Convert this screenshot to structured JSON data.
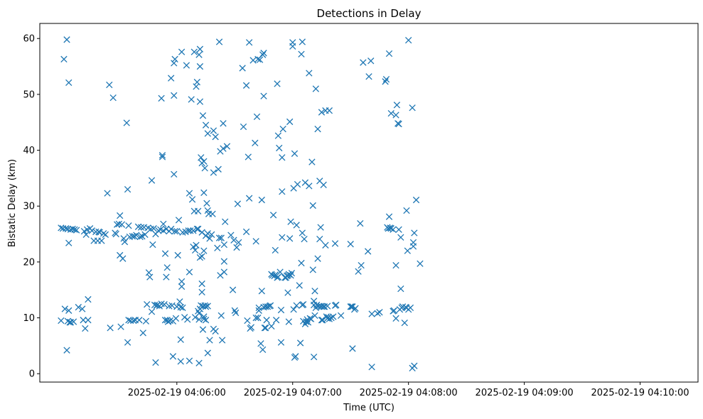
{
  "chart_data": {
    "type": "scatter",
    "title": "Detections in Delay",
    "xlabel": "Time (UTC)",
    "ylabel": "Bistatic Delay (km)",
    "marker": "x",
    "color": "#1f77b4",
    "x_start": "2025-02-19 04:05:00",
    "x_end": "2025-02-19 04:10:20",
    "xlim": [
      "2025-02-19 04:04:49",
      "2025-02-19 04:10:30"
    ],
    "ylim": [
      -1.5,
      62.7
    ],
    "xticks": [
      {
        "time": "2025-02-19 04:06:00",
        "label": "2025-02-19 04:06:00"
      },
      {
        "time": "2025-02-19 04:07:00",
        "label": "2025-02-19 04:07:00"
      },
      {
        "time": "2025-02-19 04:08:00",
        "label": "2025-02-19 04:08:00"
      },
      {
        "time": "2025-02-19 04:09:00",
        "label": "2025-02-19 04:09:00"
      },
      {
        "time": "2025-02-19 04:10:00",
        "label": "2025-02-19 04:10:00"
      }
    ],
    "yticks": [
      0,
      10,
      20,
      30,
      40,
      50,
      60
    ],
    "points": [
      [
        0.0,
        9.5
      ],
      [
        0.0,
        26.1
      ],
      [
        1.0,
        26.0
      ],
      [
        1.5,
        56.3
      ],
      [
        2.0,
        11.6
      ],
      [
        2.5,
        26.0
      ],
      [
        3.0,
        59.8
      ],
      [
        3.0,
        4.2
      ],
      [
        3.5,
        25.9
      ],
      [
        3.5,
        9.4
      ],
      [
        4.0,
        52.1
      ],
      [
        4.0,
        23.4
      ],
      [
        4.0,
        11.3
      ],
      [
        4.5,
        9.2
      ],
      [
        5.0,
        25.8
      ],
      [
        5.0,
        9.2
      ],
      [
        6.0,
        25.9
      ],
      [
        6.5,
        9.3
      ],
      [
        7.0,
        25.8
      ],
      [
        8.0,
        25.7
      ],
      [
        9.0,
        11.9
      ],
      [
        11.0,
        11.6
      ],
      [
        11.5,
        9.6
      ],
      [
        12.0,
        25.5
      ],
      [
        12.5,
        8.1
      ],
      [
        13.0,
        24.9
      ],
      [
        13.5,
        25.8
      ],
      [
        14.0,
        13.3
      ],
      [
        14.0,
        9.6
      ],
      [
        15.0,
        26.0
      ],
      [
        16.0,
        25.6
      ],
      [
        17.0,
        23.8
      ],
      [
        18.0,
        25.4
      ],
      [
        19.0,
        23.8
      ],
      [
        19.5,
        25.4
      ],
      [
        20.0,
        25.3
      ],
      [
        21.0,
        23.8
      ],
      [
        22.0,
        25.1
      ],
      [
        23.0,
        24.9
      ],
      [
        24.0,
        32.3
      ],
      [
        25.0,
        51.7
      ],
      [
        25.5,
        8.2
      ],
      [
        27.0,
        49.4
      ],
      [
        28.0,
        25.2
      ],
      [
        28.5,
        25.0
      ],
      [
        29.0,
        26.7
      ],
      [
        30.0,
        26.8
      ],
      [
        30.5,
        28.3
      ],
      [
        30.5,
        21.2
      ],
      [
        31.0,
        8.4
      ],
      [
        31.5,
        26.7
      ],
      [
        32.0,
        20.6
      ],
      [
        32.5,
        24.2
      ],
      [
        33.0,
        23.6
      ],
      [
        34.0,
        44.9
      ],
      [
        34.5,
        33.0
      ],
      [
        34.5,
        5.6
      ],
      [
        35.0,
        26.5
      ],
      [
        35.0,
        9.6
      ],
      [
        35.5,
        24.5
      ],
      [
        36.0,
        9.5
      ],
      [
        37.0,
        24.6
      ],
      [
        37.5,
        9.5
      ],
      [
        38.0,
        24.6
      ],
      [
        38.5,
        9.6
      ],
      [
        39.0,
        24.8
      ],
      [
        40.0,
        26.3
      ],
      [
        40.5,
        9.6
      ],
      [
        41.0,
        24.5
      ],
      [
        41.5,
        26.2
      ],
      [
        42.0,
        24.6
      ],
      [
        42.5,
        7.3
      ],
      [
        43.0,
        26.2
      ],
      [
        43.5,
        24.9
      ],
      [
        44.0,
        9.4
      ],
      [
        44.5,
        12.4
      ],
      [
        45.0,
        26.1
      ],
      [
        45.5,
        18.1
      ],
      [
        46.0,
        17.3
      ],
      [
        46.5,
        25.9
      ],
      [
        47.0,
        34.6
      ],
      [
        47.0,
        11.1
      ],
      [
        47.5,
        23.1
      ],
      [
        48.0,
        26.0
      ],
      [
        48.5,
        12.3
      ],
      [
        49.0,
        2.0
      ],
      [
        49.0,
        25.0
      ],
      [
        49.5,
        12.2
      ],
      [
        50.0,
        12.3
      ],
      [
        50.5,
        25.6
      ],
      [
        51.0,
        12.1
      ],
      [
        51.5,
        25.8
      ],
      [
        52.0,
        12.5
      ],
      [
        52.0,
        49.3
      ],
      [
        52.5,
        39.1
      ],
      [
        52.5,
        38.8
      ],
      [
        53.0,
        25.6
      ],
      [
        53.0,
        26.8
      ],
      [
        53.5,
        12.4
      ],
      [
        54.0,
        21.5
      ],
      [
        54.0,
        9.6
      ],
      [
        54.5,
        17.3
      ],
      [
        54.5,
        25.9
      ],
      [
        55.0,
        19.0
      ],
      [
        55.0,
        9.6
      ],
      [
        55.5,
        9.3
      ],
      [
        56.0,
        12.1
      ],
      [
        56.0,
        25.5
      ],
      [
        56.5,
        9.5
      ],
      [
        57.0,
        52.9
      ],
      [
        57.0,
        25.9
      ],
      [
        57.5,
        12.2
      ],
      [
        58.0,
        3.1
      ],
      [
        58.0,
        9.4
      ],
      [
        58.5,
        55.6
      ],
      [
        58.5,
        49.8
      ],
      [
        58.5,
        35.7
      ],
      [
        59.0,
        56.3
      ],
      [
        59.0,
        25.5
      ],
      [
        59.5,
        9.9
      ],
      [
        60.0,
        12.0
      ],
      [
        60.0,
        25.5
      ],
      [
        60.5,
        21.2
      ],
      [
        61.0,
        27.5
      ],
      [
        61.5,
        12.9
      ],
      [
        62.0,
        11.9
      ],
      [
        62.0,
        2.2
      ],
      [
        62.0,
        6.1
      ],
      [
        62.5,
        57.6
      ],
      [
        62.5,
        16.5
      ],
      [
        62.5,
        15.6
      ],
      [
        63.0,
        11.8
      ],
      [
        63.0,
        25.3
      ],
      [
        64.0,
        10.1
      ],
      [
        64.5,
        25.4
      ],
      [
        65.0,
        55.2
      ],
      [
        65.5,
        9.7
      ],
      [
        66.0,
        25.6
      ],
      [
        66.5,
        32.3
      ],
      [
        66.5,
        18.2
      ],
      [
        66.5,
        2.3
      ],
      [
        67.0,
        25.6
      ],
      [
        67.5,
        49.1
      ],
      [
        68.0,
        31.2
      ],
      [
        68.5,
        25.6
      ],
      [
        68.5,
        22.7
      ],
      [
        69.0,
        57.6
      ],
      [
        69.0,
        29.1
      ],
      [
        69.5,
        10.1
      ],
      [
        69.5,
        22.1
      ],
      [
        70.0,
        51.4
      ],
      [
        70.0,
        23.0
      ],
      [
        70.5,
        52.2
      ],
      [
        70.5,
        25.9
      ],
      [
        71.0,
        25.9
      ],
      [
        71.0,
        29.1
      ],
      [
        71.0,
        11.2
      ],
      [
        71.5,
        57.1
      ],
      [
        71.5,
        9.7
      ],
      [
        71.5,
        10.8
      ],
      [
        71.5,
        1.9
      ],
      [
        72.0,
        55.0
      ],
      [
        72.0,
        58.1
      ],
      [
        72.0,
        48.7
      ],
      [
        72.0,
        20.8
      ],
      [
        72.0,
        11.6
      ],
      [
        72.5,
        38.7
      ],
      [
        72.5,
        12.2
      ],
      [
        73.0,
        37.7
      ],
      [
        73.0,
        25.3
      ],
      [
        73.0,
        21.0
      ],
      [
        73.0,
        14.6
      ],
      [
        73.0,
        16.1
      ],
      [
        73.5,
        46.2
      ],
      [
        73.5,
        12.1
      ],
      [
        73.5,
        7.9
      ],
      [
        74.0,
        38.0
      ],
      [
        74.0,
        32.4
      ],
      [
        74.0,
        22.0
      ],
      [
        74.0,
        10.2
      ],
      [
        74.0,
        9.8
      ],
      [
        74.5,
        36.8
      ],
      [
        74.5,
        12.2
      ],
      [
        75.0,
        44.5
      ],
      [
        75.0,
        24.7
      ],
      [
        75.0,
        12.0
      ],
      [
        75.0,
        9.6
      ],
      [
        75.5,
        30.5
      ],
      [
        76.0,
        29.2
      ],
      [
        76.0,
        43.0
      ],
      [
        76.0,
        25.1
      ],
      [
        76.0,
        12.1
      ],
      [
        76.0,
        3.7
      ],
      [
        76.5,
        28.6
      ],
      [
        77.0,
        24.2
      ],
      [
        77.0,
        6.0
      ],
      [
        78.0,
        24.9
      ],
      [
        78.5,
        28.6
      ],
      [
        79.0,
        36.0
      ],
      [
        79.0,
        43.5
      ],
      [
        79.0,
        8.0
      ],
      [
        80.0,
        42.4
      ],
      [
        80.0,
        7.6
      ],
      [
        81.0,
        22.5
      ],
      [
        81.5,
        36.6
      ],
      [
        82.0,
        59.4
      ],
      [
        82.0,
        24.3
      ],
      [
        82.5,
        39.8
      ],
      [
        82.5,
        17.6
      ],
      [
        83.0,
        10.4
      ],
      [
        83.0,
        24.3
      ],
      [
        83.5,
        6.0
      ],
      [
        84.0,
        40.3
      ],
      [
        84.0,
        44.8
      ],
      [
        84.5,
        18.2
      ],
      [
        84.5,
        20.1
      ],
      [
        84.5,
        23.1
      ],
      [
        85.0,
        27.2
      ],
      [
        86.0,
        40.7
      ],
      [
        88.0,
        24.8
      ],
      [
        89.0,
        15.0
      ],
      [
        89.5,
        23.9
      ],
      [
        90.0,
        11.3
      ],
      [
        90.5,
        10.9
      ],
      [
        91.0,
        22.6
      ],
      [
        91.5,
        30.4
      ],
      [
        92.0,
        23.5
      ],
      [
        94.0,
        54.7
      ],
      [
        94.5,
        44.2
      ],
      [
        96.0,
        51.6
      ],
      [
        96.0,
        25.4
      ],
      [
        96.5,
        9.5
      ],
      [
        97.0,
        38.8
      ],
      [
        97.5,
        59.3
      ],
      [
        97.5,
        31.4
      ],
      [
        98.0,
        8.1
      ],
      [
        98.5,
        8.3
      ],
      [
        99.5,
        56.1
      ],
      [
        100.5,
        41.3
      ],
      [
        101.0,
        23.7
      ],
      [
        101.0,
        10.0
      ],
      [
        101.5,
        46.0
      ],
      [
        102.0,
        56.3
      ],
      [
        102.0,
        10.0
      ],
      [
        102.5,
        11.3
      ],
      [
        102.5,
        11.8
      ],
      [
        103.0,
        56.2
      ],
      [
        103.5,
        5.4
      ],
      [
        104.0,
        31.1
      ],
      [
        104.0,
        14.8
      ],
      [
        104.5,
        57.1
      ],
      [
        104.5,
        4.3
      ],
      [
        105.0,
        11.9
      ],
      [
        105.0,
        49.7
      ],
      [
        105.0,
        57.4
      ],
      [
        105.5,
        8.2
      ],
      [
        106.0,
        12.0
      ],
      [
        106.0,
        8.2
      ],
      [
        106.5,
        9.6
      ],
      [
        107.0,
        12.0
      ],
      [
        108.0,
        12.1
      ],
      [
        108.5,
        12.2
      ],
      [
        109.0,
        17.8
      ],
      [
        109.0,
        8.5
      ],
      [
        109.5,
        17.6
      ],
      [
        110.0,
        28.4
      ],
      [
        110.5,
        17.5
      ],
      [
        111.0,
        17.7
      ],
      [
        111.0,
        22.1
      ],
      [
        111.5,
        9.6
      ],
      [
        112.0,
        51.9
      ],
      [
        112.0,
        17.2
      ],
      [
        112.5,
        17.3
      ],
      [
        112.5,
        42.6
      ],
      [
        113.0,
        40.4
      ],
      [
        113.5,
        18.2
      ],
      [
        114.0,
        5.6
      ],
      [
        114.0,
        11.4
      ],
      [
        114.5,
        38.7
      ],
      [
        114.5,
        32.6
      ],
      [
        114.5,
        24.4
      ],
      [
        115.0,
        43.8
      ],
      [
        116.0,
        17.2
      ],
      [
        116.5,
        17.2
      ],
      [
        117.0,
        17.5
      ],
      [
        117.5,
        17.6
      ],
      [
        117.5,
        14.5
      ],
      [
        118.0,
        9.3
      ],
      [
        118.0,
        17.8
      ],
      [
        118.5,
        45.1
      ],
      [
        118.5,
        24.2
      ],
      [
        119.0,
        27.2
      ],
      [
        119.0,
        17.6
      ],
      [
        119.5,
        18.0
      ],
      [
        120.0,
        59.3
      ],
      [
        120.0,
        58.6
      ],
      [
        120.5,
        11.5
      ],
      [
        120.5,
        33.2
      ],
      [
        121.0,
        2.9
      ],
      [
        121.0,
        39.4
      ],
      [
        121.5,
        3.1
      ],
      [
        122.0,
        26.6
      ],
      [
        122.0,
        12.2
      ],
      [
        122.5,
        33.9
      ],
      [
        123.5,
        15.8
      ],
      [
        124.0,
        5.5
      ],
      [
        124.5,
        57.2
      ],
      [
        124.5,
        19.8
      ],
      [
        125.0,
        59.4
      ],
      [
        125.0,
        25.2
      ],
      [
        125.0,
        12.3
      ],
      [
        125.5,
        9.4
      ],
      [
        125.5,
        12.4
      ],
      [
        126.0,
        24.1
      ],
      [
        126.5,
        34.2
      ],
      [
        126.5,
        8.9
      ],
      [
        127.0,
        9.3
      ],
      [
        127.5,
        9.7
      ],
      [
        128.0,
        9.2
      ],
      [
        128.5,
        53.8
      ],
      [
        128.5,
        33.6
      ],
      [
        129.0,
        9.9
      ],
      [
        129.5,
        9.8
      ],
      [
        130.0,
        37.9
      ],
      [
        130.5,
        30.1
      ],
      [
        130.5,
        18.6
      ],
      [
        131.0,
        12.3
      ],
      [
        131.0,
        3.0
      ],
      [
        131.0,
        13.0
      ],
      [
        131.5,
        14.8
      ],
      [
        131.5,
        10.4
      ],
      [
        132.0,
        51.0
      ],
      [
        132.0,
        11.8
      ],
      [
        132.5,
        12.3
      ],
      [
        133.0,
        43.8
      ],
      [
        133.0,
        20.6
      ],
      [
        133.5,
        12.1
      ],
      [
        134.0,
        34.5
      ],
      [
        134.0,
        24.1
      ],
      [
        134.5,
        12.1
      ],
      [
        134.5,
        26.2
      ],
      [
        135.0,
        46.8
      ],
      [
        135.0,
        12.0
      ],
      [
        135.0,
        9.6
      ],
      [
        135.5,
        9.6
      ],
      [
        136.0,
        12.0
      ],
      [
        136.0,
        33.8
      ],
      [
        136.5,
        12.0
      ],
      [
        137.0,
        47.1
      ],
      [
        137.0,
        23.0
      ],
      [
        137.5,
        10.2
      ],
      [
        138.0,
        9.9
      ],
      [
        138.0,
        12.1
      ],
      [
        138.5,
        10.1
      ],
      [
        139.0,
        47.1
      ],
      [
        139.0,
        9.8
      ],
      [
        140.0,
        10.0
      ],
      [
        141.0,
        10.2
      ],
      [
        142.0,
        23.3
      ],
      [
        142.0,
        12.2
      ],
      [
        142.5,
        12.3
      ],
      [
        145.0,
        10.4
      ],
      [
        150.0,
        23.2
      ],
      [
        150.0,
        12.0
      ],
      [
        150.5,
        12.0
      ],
      [
        151.0,
        12.0
      ],
      [
        151.0,
        4.5
      ],
      [
        152.0,
        11.5
      ],
      [
        152.5,
        11.7
      ],
      [
        154.0,
        18.3
      ],
      [
        155.0,
        26.9
      ],
      [
        155.5,
        19.4
      ],
      [
        156.5,
        55.7
      ],
      [
        159.0,
        21.9
      ],
      [
        159.5,
        53.2
      ],
      [
        160.5,
        56.0
      ],
      [
        161.0,
        10.7
      ],
      [
        161.0,
        1.2
      ],
      [
        164.0,
        10.8
      ],
      [
        165.0,
        11.0
      ],
      [
        168.0,
        52.3
      ],
      [
        168.5,
        52.7
      ],
      [
        169.0,
        26.2
      ],
      [
        169.5,
        26.0
      ],
      [
        170.0,
        28.1
      ],
      [
        170.0,
        57.3
      ],
      [
        170.5,
        26.1
      ],
      [
        171.0,
        46.6
      ],
      [
        171.0,
        26.0
      ],
      [
        172.0,
        25.8
      ],
      [
        172.0,
        11.2
      ],
      [
        172.5,
        11.3
      ],
      [
        173.5,
        46.3
      ],
      [
        173.5,
        19.4
      ],
      [
        173.5,
        9.9
      ],
      [
        174.0,
        48.1
      ],
      [
        174.5,
        44.8
      ],
      [
        175.0,
        44.7
      ],
      [
        175.0,
        25.8
      ],
      [
        175.5,
        11.5
      ],
      [
        176.0,
        24.4
      ],
      [
        176.0,
        15.2
      ],
      [
        176.5,
        11.8
      ],
      [
        177.0,
        12.0
      ],
      [
        178.0,
        9.1
      ],
      [
        178.5,
        11.9
      ],
      [
        179.0,
        29.2
      ],
      [
        179.0,
        11.8
      ],
      [
        179.5,
        22.0
      ],
      [
        180.0,
        59.7
      ],
      [
        180.0,
        11.5
      ],
      [
        181.0,
        11.8
      ],
      [
        182.0,
        47.6
      ],
      [
        182.0,
        1.0
      ],
      [
        182.5,
        23.5
      ],
      [
        182.5,
        22.8
      ],
      [
        183.0,
        25.2
      ],
      [
        183.0,
        1.4
      ],
      [
        184.0,
        31.1
      ],
      [
        186.0,
        19.7
      ]
    ]
  }
}
